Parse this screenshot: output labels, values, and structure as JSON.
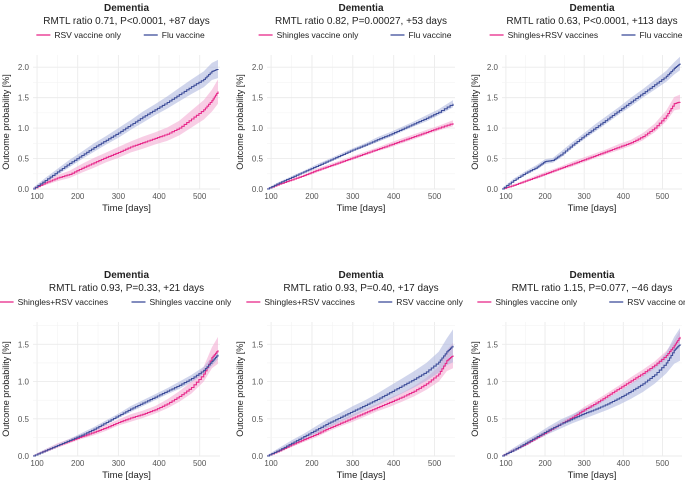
{
  "figure": {
    "colors": {
      "pink": "#e7298a",
      "blue": "#3f4f9a",
      "pink_band": "#f3a6cf",
      "blue_band": "#aab3dc",
      "grid": "#ebebeb",
      "text": "#222222"
    }
  },
  "chart_data": [
    {
      "type": "line",
      "title": "Dementia",
      "subtitle": "RMTL ratio 0.71, P<0.0001, +87 days",
      "xlabel": "Time [days]",
      "ylabel": "Outcome probability [%]",
      "xlim": [
        90,
        550
      ],
      "ylim": [
        0,
        2.2
      ],
      "xticks": [
        100,
        200,
        300,
        400,
        500
      ],
      "yticks": [
        0.0,
        0.5,
        1.0,
        1.5,
        2.0
      ],
      "grid": true,
      "legend_position": "top",
      "series": [
        {
          "name": "RSV vaccine only",
          "color": "pink",
          "x": [
            90,
            120,
            150,
            180,
            210,
            240,
            270,
            300,
            330,
            360,
            390,
            420,
            450,
            480,
            510,
            530,
            545
          ],
          "y": [
            0.0,
            0.1,
            0.18,
            0.24,
            0.34,
            0.43,
            0.52,
            0.6,
            0.69,
            0.76,
            0.83,
            0.9,
            1.0,
            1.15,
            1.3,
            1.45,
            1.6
          ],
          "band": [
            0.02,
            0.04,
            0.05,
            0.06,
            0.07,
            0.08,
            0.08,
            0.09,
            0.09,
            0.1,
            0.1,
            0.11,
            0.12,
            0.14,
            0.16,
            0.18,
            0.2
          ]
        },
        {
          "name": "Flu vaccine",
          "color": "blue",
          "x": [
            90,
            120,
            150,
            180,
            210,
            240,
            270,
            300,
            330,
            360,
            390,
            420,
            450,
            480,
            510,
            530,
            545
          ],
          "y": [
            0.0,
            0.14,
            0.28,
            0.42,
            0.55,
            0.68,
            0.8,
            0.92,
            1.05,
            1.18,
            1.3,
            1.42,
            1.55,
            1.68,
            1.8,
            1.93,
            1.97
          ],
          "band": [
            0.02,
            0.04,
            0.05,
            0.06,
            0.06,
            0.07,
            0.07,
            0.08,
            0.08,
            0.09,
            0.09,
            0.1,
            0.11,
            0.12,
            0.13,
            0.14,
            0.15
          ]
        }
      ]
    },
    {
      "type": "line",
      "title": "Dementia",
      "subtitle": "RMTL ratio 0.82, P=0.00027, +53 days",
      "xlabel": "Time [days]",
      "ylabel": "Outcome probability [%]",
      "xlim": [
        90,
        550
      ],
      "ylim": [
        0,
        2.2
      ],
      "xticks": [
        100,
        200,
        300,
        400,
        500
      ],
      "yticks": [
        0.0,
        0.5,
        1.0,
        1.5,
        2.0
      ],
      "grid": true,
      "legend_position": "top",
      "series": [
        {
          "name": "Shingles vaccine only",
          "color": "pink",
          "x": [
            90,
            120,
            150,
            180,
            210,
            240,
            270,
            300,
            330,
            360,
            390,
            420,
            450,
            480,
            510,
            545
          ],
          "y": [
            0.0,
            0.08,
            0.15,
            0.22,
            0.3,
            0.37,
            0.44,
            0.51,
            0.58,
            0.65,
            0.72,
            0.79,
            0.86,
            0.93,
            1.0,
            1.08
          ],
          "band": [
            0.01,
            0.02,
            0.02,
            0.02,
            0.03,
            0.03,
            0.03,
            0.03,
            0.03,
            0.03,
            0.04,
            0.04,
            0.04,
            0.04,
            0.04,
            0.05
          ]
        },
        {
          "name": "Flu vaccine",
          "color": "blue",
          "x": [
            90,
            120,
            150,
            180,
            210,
            240,
            270,
            300,
            330,
            360,
            390,
            420,
            450,
            480,
            510,
            545
          ],
          "y": [
            0.0,
            0.1,
            0.19,
            0.28,
            0.37,
            0.46,
            0.55,
            0.64,
            0.72,
            0.81,
            0.89,
            0.98,
            1.07,
            1.16,
            1.26,
            1.4
          ],
          "band": [
            0.01,
            0.02,
            0.02,
            0.02,
            0.03,
            0.03,
            0.03,
            0.03,
            0.03,
            0.04,
            0.04,
            0.04,
            0.04,
            0.05,
            0.05,
            0.06
          ]
        }
      ]
    },
    {
      "type": "line",
      "title": "Dementia",
      "subtitle": "RMTL ratio 0.63, P<0.0001, +113 days",
      "xlabel": "Time [days]",
      "ylabel": "Outcome probability [%]",
      "xlim": [
        90,
        550
      ],
      "ylim": [
        0,
        2.2
      ],
      "xticks": [
        100,
        200,
        300,
        400,
        500
      ],
      "yticks": [
        0.0,
        0.5,
        1.0,
        1.5,
        2.0
      ],
      "grid": true,
      "legend_position": "top",
      "series": [
        {
          "name": "Shingles+RSV vaccines",
          "color": "pink",
          "x": [
            90,
            120,
            150,
            180,
            210,
            240,
            270,
            300,
            330,
            360,
            390,
            420,
            450,
            480,
            510,
            530,
            545
          ],
          "y": [
            0.0,
            0.06,
            0.13,
            0.2,
            0.27,
            0.34,
            0.41,
            0.48,
            0.55,
            0.62,
            0.69,
            0.76,
            0.86,
            1.0,
            1.2,
            1.4,
            1.43
          ],
          "band": [
            0.01,
            0.02,
            0.02,
            0.03,
            0.03,
            0.03,
            0.04,
            0.04,
            0.04,
            0.04,
            0.05,
            0.05,
            0.06,
            0.07,
            0.09,
            0.11,
            0.12
          ]
        },
        {
          "name": "Flu vaccine",
          "color": "blue",
          "x": [
            90,
            120,
            150,
            180,
            200,
            220,
            240,
            270,
            300,
            330,
            360,
            390,
            420,
            450,
            480,
            510,
            530,
            545
          ],
          "y": [
            0.0,
            0.14,
            0.26,
            0.36,
            0.45,
            0.47,
            0.56,
            0.72,
            0.87,
            1.01,
            1.15,
            1.29,
            1.43,
            1.57,
            1.71,
            1.85,
            1.98,
            2.06
          ],
          "band": [
            0.01,
            0.03,
            0.03,
            0.04,
            0.04,
            0.04,
            0.05,
            0.05,
            0.05,
            0.06,
            0.06,
            0.06,
            0.07,
            0.07,
            0.08,
            0.09,
            0.1,
            0.11
          ]
        }
      ]
    },
    {
      "type": "line",
      "title": "Dementia",
      "subtitle": "RMTL ratio 0.93, P=0.33, +21 days",
      "xlabel": "Time [days]",
      "ylabel": "Outcome probability [%]",
      "xlim": [
        90,
        550
      ],
      "ylim": [
        0,
        1.8
      ],
      "xticks": [
        100,
        200,
        300,
        400,
        500
      ],
      "yticks": [
        0.0,
        0.5,
        1.0,
        1.5
      ],
      "grid": true,
      "legend_position": "top",
      "series": [
        {
          "name": "Shingles+RSV vaccines",
          "color": "pink",
          "x": [
            90,
            120,
            150,
            180,
            210,
            240,
            270,
            300,
            330,
            360,
            390,
            420,
            450,
            480,
            510,
            530,
            545
          ],
          "y": [
            0.0,
            0.07,
            0.14,
            0.2,
            0.26,
            0.32,
            0.38,
            0.45,
            0.51,
            0.56,
            0.62,
            0.7,
            0.8,
            0.92,
            1.1,
            1.32,
            1.42
          ],
          "band": [
            0.01,
            0.02,
            0.03,
            0.03,
            0.03,
            0.04,
            0.04,
            0.04,
            0.05,
            0.05,
            0.05,
            0.06,
            0.07,
            0.08,
            0.1,
            0.14,
            0.18
          ]
        },
        {
          "name": "Shingles vaccine only",
          "color": "blue",
          "x": [
            90,
            120,
            150,
            180,
            210,
            240,
            270,
            300,
            330,
            360,
            390,
            420,
            450,
            480,
            510,
            530,
            545
          ],
          "y": [
            0.0,
            0.07,
            0.14,
            0.21,
            0.28,
            0.36,
            0.45,
            0.54,
            0.63,
            0.71,
            0.79,
            0.87,
            0.95,
            1.04,
            1.15,
            1.27,
            1.36
          ],
          "band": [
            0.01,
            0.02,
            0.02,
            0.02,
            0.03,
            0.03,
            0.03,
            0.03,
            0.04,
            0.04,
            0.04,
            0.04,
            0.05,
            0.05,
            0.05,
            0.06,
            0.06
          ]
        }
      ]
    },
    {
      "type": "line",
      "title": "Dementia",
      "subtitle": "RMTL ratio 0.93, P=0.40, +17 days",
      "xlabel": "Time [days]",
      "ylabel": "Outcome probability [%]",
      "xlim": [
        90,
        550
      ],
      "ylim": [
        0,
        1.8
      ],
      "xticks": [
        100,
        200,
        300,
        400,
        500
      ],
      "yticks": [
        0.0,
        0.5,
        1.0,
        1.5
      ],
      "grid": true,
      "legend_position": "top",
      "series": [
        {
          "name": "Shingles+RSV vaccines",
          "color": "pink",
          "x": [
            90,
            120,
            150,
            180,
            210,
            240,
            270,
            300,
            330,
            360,
            390,
            420,
            450,
            480,
            510,
            530,
            545
          ],
          "y": [
            0.0,
            0.07,
            0.15,
            0.22,
            0.29,
            0.37,
            0.44,
            0.51,
            0.58,
            0.65,
            0.72,
            0.79,
            0.87,
            0.97,
            1.1,
            1.28,
            1.35
          ],
          "band": [
            0.01,
            0.02,
            0.03,
            0.03,
            0.04,
            0.04,
            0.04,
            0.05,
            0.05,
            0.05,
            0.06,
            0.06,
            0.07,
            0.08,
            0.1,
            0.14,
            0.17
          ]
        },
        {
          "name": "RSV vaccine only",
          "color": "blue",
          "x": [
            90,
            120,
            150,
            180,
            210,
            240,
            270,
            300,
            330,
            360,
            390,
            420,
            450,
            480,
            510,
            530,
            545
          ],
          "y": [
            0.0,
            0.08,
            0.17,
            0.26,
            0.35,
            0.44,
            0.52,
            0.6,
            0.68,
            0.76,
            0.85,
            0.94,
            1.03,
            1.13,
            1.26,
            1.4,
            1.48
          ],
          "band": [
            0.01,
            0.03,
            0.04,
            0.04,
            0.05,
            0.06,
            0.06,
            0.07,
            0.07,
            0.08,
            0.09,
            0.1,
            0.11,
            0.12,
            0.14,
            0.18,
            0.22
          ]
        }
      ]
    },
    {
      "type": "line",
      "title": "Dementia",
      "subtitle": "RMTL ratio 1.15, P=0.077, −46 days",
      "xlabel": "Time [days]",
      "ylabel": "Outcome probability [%]",
      "xlim": [
        90,
        550
      ],
      "ylim": [
        0,
        1.8
      ],
      "xticks": [
        100,
        200,
        300,
        400,
        500
      ],
      "yticks": [
        0.0,
        0.5,
        1.0,
        1.5
      ],
      "grid": true,
      "legend_position": "top",
      "series": [
        {
          "name": "Shingles vaccine only",
          "color": "pink",
          "x": [
            90,
            120,
            150,
            180,
            210,
            240,
            270,
            300,
            330,
            360,
            390,
            420,
            450,
            480,
            510,
            530,
            545
          ],
          "y": [
            0.0,
            0.08,
            0.16,
            0.25,
            0.34,
            0.43,
            0.52,
            0.62,
            0.71,
            0.81,
            0.91,
            1.01,
            1.11,
            1.22,
            1.35,
            1.48,
            1.6
          ],
          "band": [
            0.01,
            0.02,
            0.02,
            0.03,
            0.03,
            0.03,
            0.03,
            0.04,
            0.04,
            0.04,
            0.04,
            0.05,
            0.05,
            0.05,
            0.06,
            0.07,
            0.08
          ]
        },
        {
          "name": "RSV vaccine only",
          "color": "blue",
          "x": [
            90,
            120,
            150,
            180,
            210,
            240,
            270,
            300,
            330,
            360,
            390,
            420,
            450,
            480,
            510,
            530,
            545
          ],
          "y": [
            0.0,
            0.08,
            0.17,
            0.26,
            0.35,
            0.43,
            0.5,
            0.57,
            0.63,
            0.7,
            0.78,
            0.87,
            0.97,
            1.09,
            1.25,
            1.42,
            1.5
          ],
          "band": [
            0.01,
            0.03,
            0.04,
            0.04,
            0.05,
            0.06,
            0.06,
            0.07,
            0.07,
            0.08,
            0.09,
            0.1,
            0.11,
            0.12,
            0.14,
            0.18,
            0.22
          ]
        }
      ]
    }
  ]
}
